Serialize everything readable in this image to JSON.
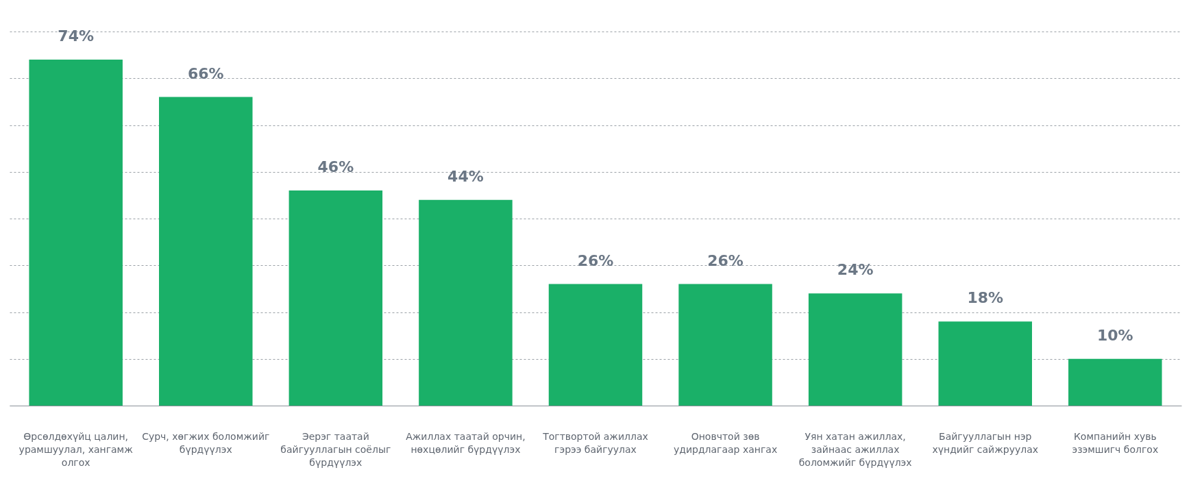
{
  "chart_data": {
    "type": "bar",
    "categories": [
      "Өрсөлдөхүйц цалин, урамшуулал, хангамж олгох",
      "Сурч, хөгжих боломжийг бүрдүүлэх",
      "Эерэг таатай байгууллагын соёлыг бүрдүүлэх",
      "Ажиллах таатай орчин, нөхцөлийг бүрдүүлэх",
      "Тогтвортой ажиллах гэрээ байгуулах",
      "Оновчтой зөв удирдлагаар хангах",
      "Уян хатан ажиллах, зайнаас ажиллах боломжийг бүрдүүлэх",
      "Байгууллагын нэр хүндийг сайжруулах",
      "Компанийн хувь эзэмшигч болгох"
    ],
    "values": [
      74,
      66,
      46,
      44,
      26,
      26,
      24,
      18,
      10
    ],
    "value_labels": [
      "74%",
      "66%",
      "46%",
      "44%",
      "26%",
      "26%",
      "24%",
      "18%",
      "10%"
    ],
    "color": "#1ab068",
    "ylim": [
      0,
      80
    ],
    "yticks": [
      {
        "value": 0,
        "label": null
      },
      {
        "value": 10,
        "label": null
      },
      {
        "value": 20,
        "label": null
      },
      {
        "value": 30,
        "label": null
      },
      {
        "value": 40,
        "label": null
      },
      {
        "value": 50,
        "label": null
      },
      {
        "value": 60,
        "label": null
      },
      {
        "value": 70,
        "label": null
      },
      {
        "value": 80,
        "label": null
      }
    ],
    "grid": "y",
    "tick_labels": "x"
  }
}
